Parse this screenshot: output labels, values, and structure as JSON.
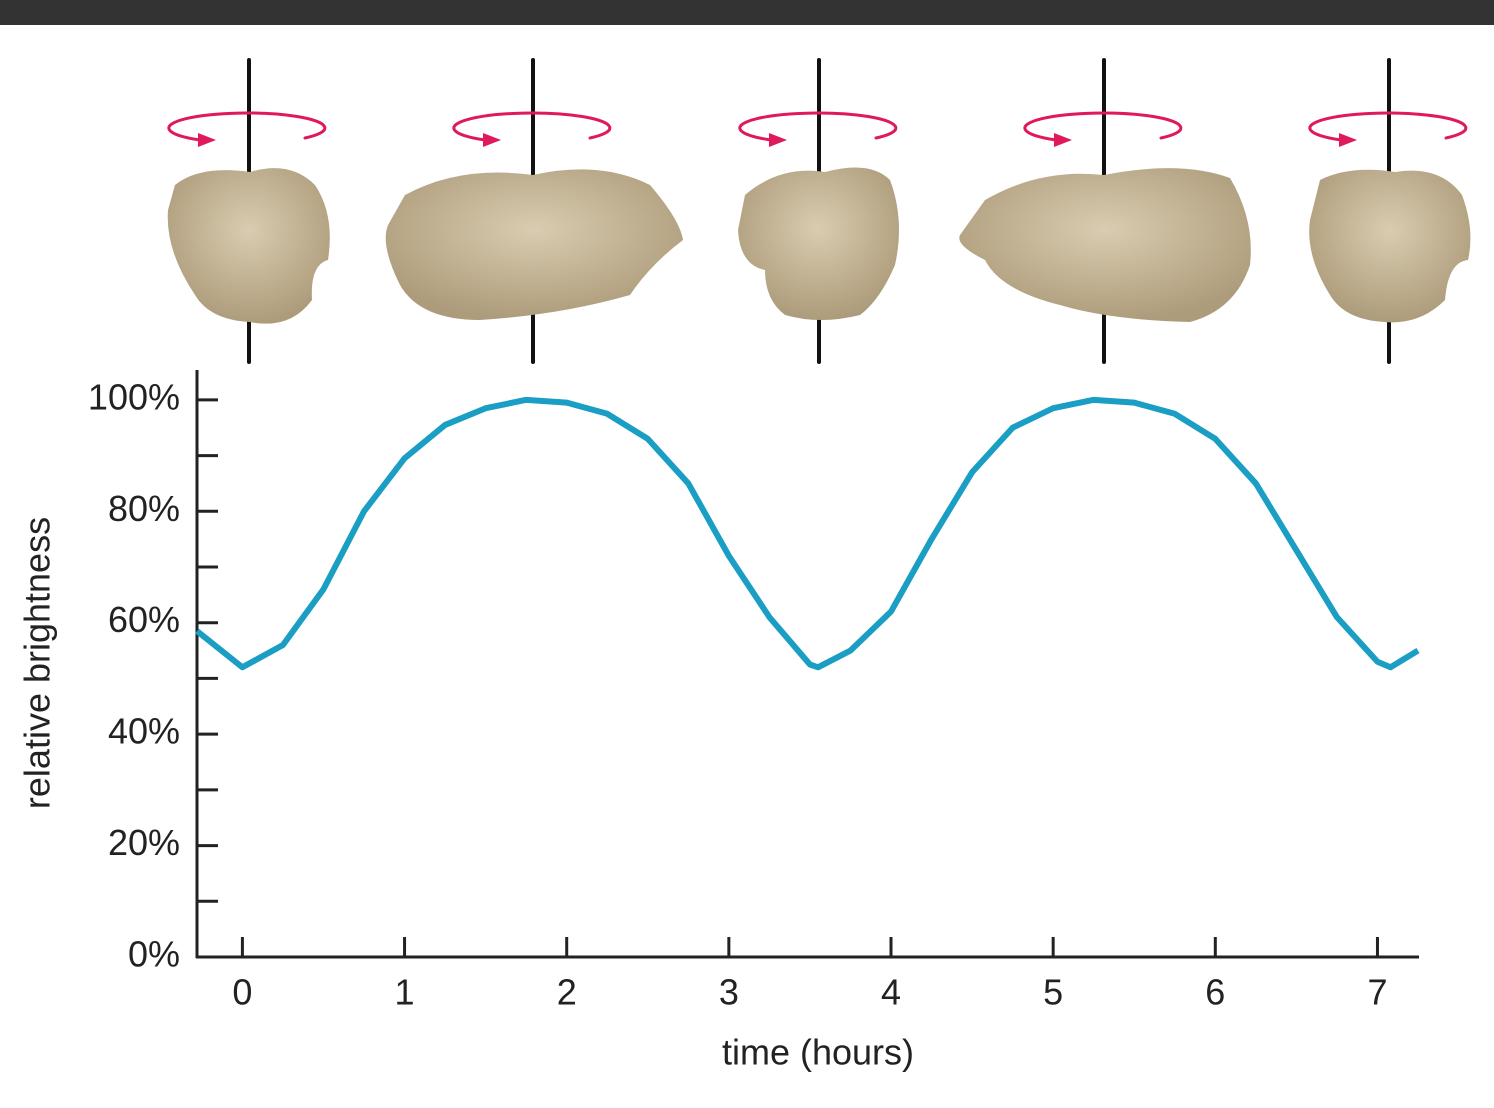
{
  "chart_data": {
    "type": "line",
    "xlabel": "time (hours)",
    "ylabel": "relative brightness",
    "x": [
      -0.28,
      0,
      0.25,
      0.5,
      0.75,
      1,
      1.25,
      1.5,
      1.75,
      2,
      2.25,
      2.5,
      2.75,
      3,
      3.25,
      3.5,
      3.55,
      3.75,
      4,
      4.25,
      4.5,
      4.75,
      5,
      5.25,
      5.5,
      5.75,
      6,
      6.25,
      6.5,
      6.75,
      7,
      7.08,
      7.25
    ],
    "series": [
      {
        "name": "brightness",
        "color": "#1a9ec4",
        "values": [
          58.5,
          52,
          56,
          66,
          80,
          89.5,
          95.5,
          98.5,
          100,
          99.5,
          97.5,
          93,
          85,
          72,
          61,
          52.5,
          52,
          55,
          62,
          75,
          87,
          95,
          98.5,
          100,
          99.5,
          97.5,
          93,
          85,
          73,
          61,
          53,
          52,
          55
        ]
      }
    ],
    "xlim": [
      -0.28,
      7.25
    ],
    "xticks": [
      0,
      1,
      2,
      3,
      4,
      5,
      6,
      7
    ],
    "ylim": [
      0,
      105
    ],
    "yticks": [
      {
        "value": 0,
        "label": "0%"
      },
      {
        "value": 20,
        "label": "20%"
      },
      {
        "value": 40,
        "label": "40%"
      },
      {
        "value": 60,
        "label": "60%"
      },
      {
        "value": 80,
        "label": "80%"
      },
      {
        "value": 100,
        "label": "100%"
      }
    ],
    "yminor": [
      10,
      30,
      50,
      70,
      90
    ],
    "grid": false
  }
}
